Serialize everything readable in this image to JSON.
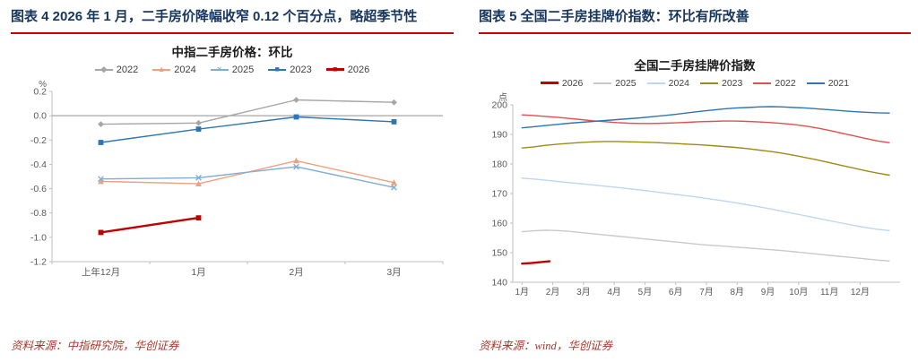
{
  "figures": {
    "left": {
      "caption": "图表 4  2026 年 1 月，二手房价降幅收窄 0.12 个百分点，略超季节性",
      "source": "资料来源：中指研究院，华创证券"
    },
    "right": {
      "caption": "图表 5  全国二手房挂牌价指数：环比有所改善",
      "source": "资料来源：wind，华创证券"
    }
  },
  "colors": {
    "caption_text": "#17365d",
    "title_rule": "#cc0000",
    "source_text": "#a8392e",
    "axis": "#bfbfbf",
    "tick_text": "#595959"
  },
  "chart_data": [
    {
      "type": "line",
      "title": "中指二手房价格：环比",
      "unit": "%",
      "categories": [
        "上年12月",
        "1月",
        "2月",
        "3月"
      ],
      "ylim": [
        -1.2,
        0.2
      ],
      "yticks": [
        0.2,
        0.0,
        -0.2,
        -0.4,
        -0.6,
        -0.8,
        -1.0,
        -1.2
      ],
      "ydecimals": 1,
      "zero_line": true,
      "grid": false,
      "legend_position": "top",
      "series": [
        {
          "name": "2022",
          "color": "#a6a6a6",
          "marker": "diamond",
          "values": [
            -0.07,
            -0.06,
            0.13,
            0.11
          ]
        },
        {
          "name": "2024",
          "color": "#f0a07e",
          "marker": "triangle",
          "values": [
            -0.54,
            -0.56,
            -0.37,
            -0.55
          ]
        },
        {
          "name": "2025",
          "color": "#7fadd4",
          "marker": "x",
          "values": [
            -0.52,
            -0.51,
            -0.42,
            -0.59
          ]
        },
        {
          "name": "2023",
          "color": "#2e75b6",
          "marker": "square",
          "values": [
            -0.22,
            -0.11,
            -0.01,
            -0.05
          ]
        },
        {
          "name": "2026",
          "color": "#c00000",
          "marker": "square",
          "width": 2.4,
          "values": [
            -0.96,
            -0.84,
            null,
            null
          ]
        }
      ]
    },
    {
      "type": "line",
      "title": "全国二手房挂牌价指数",
      "unit": "点",
      "xlim": [
        0.7,
        13.3
      ],
      "xticks": [
        {
          "v": 1,
          "label": "1月"
        },
        {
          "v": 2,
          "label": "2月"
        },
        {
          "v": 3,
          "label": "3月"
        },
        {
          "v": 4,
          "label": "4月"
        },
        {
          "v": 5,
          "label": "5月"
        },
        {
          "v": 6,
          "label": "6月"
        },
        {
          "v": 7,
          "label": "7月"
        },
        {
          "v": 8,
          "label": "8月"
        },
        {
          "v": 9,
          "label": "9月"
        },
        {
          "v": 10,
          "label": "10月"
        },
        {
          "v": 11,
          "label": "11月"
        },
        {
          "v": 12,
          "label": "12月"
        }
      ],
      "ylim": [
        140,
        200
      ],
      "yticks": [
        140,
        150,
        160,
        170,
        180,
        190,
        200
      ],
      "ydecimals": 0,
      "zero_line": false,
      "grid": false,
      "legend_position": "top",
      "series": [
        {
          "name": "2026",
          "color": "#c00000",
          "width": 2.4,
          "x_range": [
            1.0,
            1.9
          ],
          "values": [
            146.3,
            146.5,
            146.8,
            147.1
          ]
        },
        {
          "name": "2025",
          "color": "#c9c9c9",
          "x_range": [
            1.0,
            12.95
          ],
          "values": [
            157.1,
            157.4,
            157.6,
            157.5,
            157.2,
            156.8,
            156.4,
            156.0,
            155.6,
            155.2,
            154.8,
            154.4,
            154.0,
            153.6,
            153.2,
            152.8,
            152.5,
            152.2,
            151.9,
            151.6,
            151.3,
            151.0,
            150.7,
            150.3,
            149.9,
            149.5,
            149.1,
            148.7,
            148.3,
            147.9,
            147.5,
            147.2
          ]
        },
        {
          "name": "2024",
          "color": "#bdd7ee",
          "x_range": [
            1.0,
            12.95
          ],
          "values": [
            175.2,
            174.9,
            174.5,
            174.1,
            173.7,
            173.3,
            172.9,
            172.5,
            172.1,
            171.6,
            171.2,
            170.7,
            170.2,
            169.7,
            169.2,
            168.7,
            168.1,
            167.5,
            166.9,
            166.2,
            165.5,
            164.8,
            164.0,
            163.2,
            162.4,
            161.6,
            160.8,
            160.0,
            159.2,
            158.5,
            157.9,
            157.5
          ]
        },
        {
          "name": "2023",
          "color": "#9e8a17",
          "x_range": [
            1.0,
            12.95
          ],
          "values": [
            185.4,
            185.8,
            186.3,
            186.7,
            187.0,
            187.3,
            187.5,
            187.6,
            187.6,
            187.5,
            187.4,
            187.3,
            187.1,
            186.9,
            186.7,
            186.5,
            186.2,
            185.9,
            185.6,
            185.2,
            184.7,
            184.2,
            183.6,
            182.9,
            182.1,
            181.3,
            180.4,
            179.5,
            178.6,
            177.7,
            176.9,
            176.2
          ]
        },
        {
          "name": "2022",
          "color": "#e0504d",
          "x_range": [
            1.0,
            12.95
          ],
          "values": [
            196.6,
            196.4,
            196.1,
            195.8,
            195.4,
            195.0,
            194.6,
            194.3,
            194.0,
            193.8,
            193.7,
            193.7,
            193.8,
            193.9,
            194.1,
            194.3,
            194.4,
            194.5,
            194.5,
            194.4,
            194.2,
            194.0,
            193.7,
            193.3,
            192.8,
            192.1,
            191.3,
            190.4,
            189.5,
            188.6,
            187.8,
            187.2
          ]
        },
        {
          "name": "2021",
          "color": "#2e75b6",
          "x_range": [
            1.0,
            12.95
          ],
          "values": [
            192.2,
            192.6,
            193.0,
            193.4,
            193.8,
            194.1,
            194.4,
            194.7,
            195.0,
            195.3,
            195.6,
            196.0,
            196.4,
            196.8,
            197.3,
            197.8,
            198.2,
            198.6,
            198.9,
            199.1,
            199.3,
            199.4,
            199.3,
            199.1,
            198.9,
            198.6,
            198.3,
            198.0,
            197.7,
            197.5,
            197.3,
            197.2
          ]
        }
      ]
    }
  ]
}
